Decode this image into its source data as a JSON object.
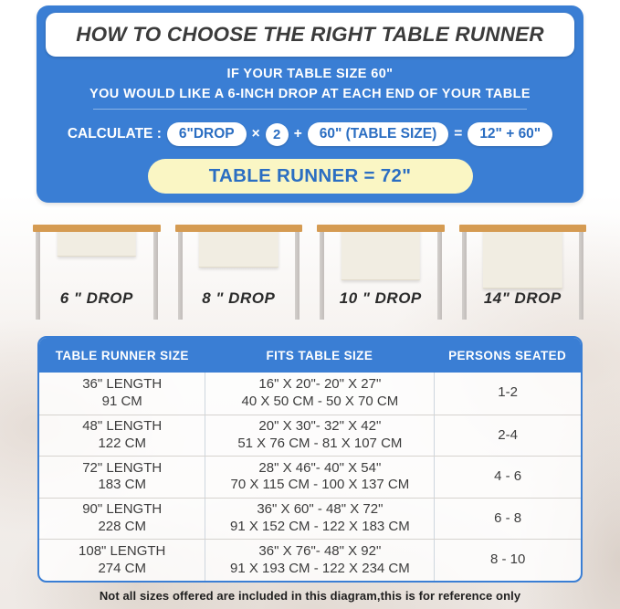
{
  "colors": {
    "panel_blue": "#3A7ED4",
    "pill_text_blue": "#2B6EC2",
    "result_yellow": "#FAF6C4",
    "tabletop_wood": "#D59B52",
    "leg_gray": "#C9C5C1",
    "runner_cream": "#F1EDE2"
  },
  "hero": {
    "title": "HOW TO CHOOSE THE RIGHT TABLE RUNNER",
    "subtitle_line1": "IF YOUR TABLE SIZE 60\"",
    "subtitle_line2": "YOU WOULD LIKE A 6-INCH DROP AT EACH END OF YOUR TABLE",
    "calc_label": "CALCULATE :",
    "calc_drop_pill": "6\"DROP",
    "calc_times": "×",
    "calc_multiplier": "2",
    "calc_plus": "+",
    "calc_table_pill": "60\" (TABLE SIZE)",
    "calc_equals": "=",
    "calc_sum_pill": "12\" + 60\"",
    "calc_result": "TABLE RUNNER = 72\""
  },
  "drop_diagrams": [
    {
      "label": "6 \" DROP"
    },
    {
      "label": "8 \" DROP"
    },
    {
      "label": "10 \" DROP"
    },
    {
      "label": "14\" DROP"
    }
  ],
  "size_table": {
    "headers": [
      "TABLE RUNNER SIZE",
      "FITS TABLE SIZE",
      "PERSONS SEATED"
    ],
    "rows": [
      {
        "runner_in": "36\" LENGTH",
        "runner_cm": "91 CM",
        "fits_in": "16\" X 20\"- 20\" X 27\"",
        "fits_cm": "40 X 50 CM - 50 X 70 CM",
        "persons": "1-2"
      },
      {
        "runner_in": "48\" LENGTH",
        "runner_cm": "122 CM",
        "fits_in": "20\" X 30\"- 32\" X 42\"",
        "fits_cm": "51 X 76 CM - 81 X 107 CM",
        "persons": "2-4"
      },
      {
        "runner_in": "72\" LENGTH",
        "runner_cm": "183 CM",
        "fits_in": "28\" X 46\"- 40\" X 54\"",
        "fits_cm": "70 X 115 CM - 100 X 137 CM",
        "persons": "4 - 6"
      },
      {
        "runner_in": "90\" LENGTH",
        "runner_cm": "228 CM",
        "fits_in": "36\" X 60\" - 48\" X 72\"",
        "fits_cm": "91 X 152 CM - 122 X 183 CM",
        "persons": "6 - 8"
      },
      {
        "runner_in": "108\" LENGTH",
        "runner_cm": "274 CM",
        "fits_in": "36\" X 76\"- 48\" X 92\"",
        "fits_cm": "91 X 193 CM - 122 X 234 CM",
        "persons": "8 - 10"
      }
    ]
  },
  "footer_note": "Not all sizes offered are included in this diagram,this is for reference only"
}
